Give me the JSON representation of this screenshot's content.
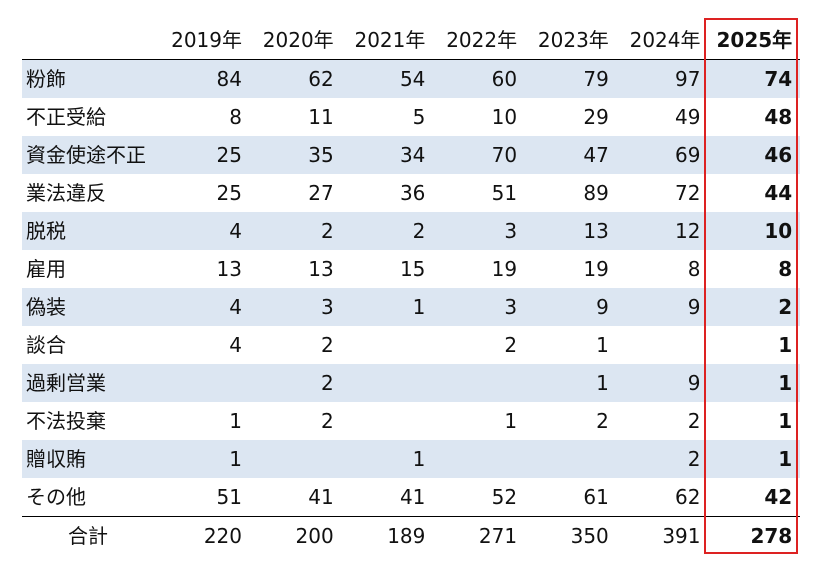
{
  "table": {
    "columns": [
      "2019年",
      "2020年",
      "2021年",
      "2022年",
      "2023年",
      "2024年",
      "2025年"
    ],
    "rows": [
      {
        "label": "粉飾",
        "values": [
          84,
          62,
          54,
          60,
          79,
          97,
          74
        ]
      },
      {
        "label": "不正受給",
        "values": [
          8,
          11,
          5,
          10,
          29,
          49,
          48
        ]
      },
      {
        "label": "資金使途不正",
        "values": [
          25,
          35,
          34,
          70,
          47,
          69,
          46
        ]
      },
      {
        "label": "業法違反",
        "values": [
          25,
          27,
          36,
          51,
          89,
          72,
          44
        ]
      },
      {
        "label": "脱税",
        "values": [
          4,
          2,
          2,
          3,
          13,
          12,
          10
        ]
      },
      {
        "label": "雇用",
        "values": [
          13,
          13,
          15,
          19,
          19,
          8,
          8
        ]
      },
      {
        "label": "偽装",
        "values": [
          4,
          3,
          1,
          3,
          9,
          9,
          2
        ]
      },
      {
        "label": "談合",
        "values": [
          4,
          2,
          null,
          2,
          1,
          null,
          1
        ]
      },
      {
        "label": "過剰営業",
        "values": [
          null,
          2,
          null,
          null,
          1,
          9,
          1
        ]
      },
      {
        "label": "不法投棄",
        "values": [
          1,
          2,
          null,
          1,
          2,
          2,
          1
        ]
      },
      {
        "label": "贈収賄",
        "values": [
          1,
          null,
          1,
          null,
          null,
          2,
          1
        ]
      },
      {
        "label": "その他",
        "values": [
          51,
          41,
          41,
          52,
          61,
          62,
          42
        ]
      }
    ],
    "total": {
      "label": "合計",
      "values": [
        220,
        200,
        189,
        271,
        350,
        391,
        278
      ]
    }
  }
}
